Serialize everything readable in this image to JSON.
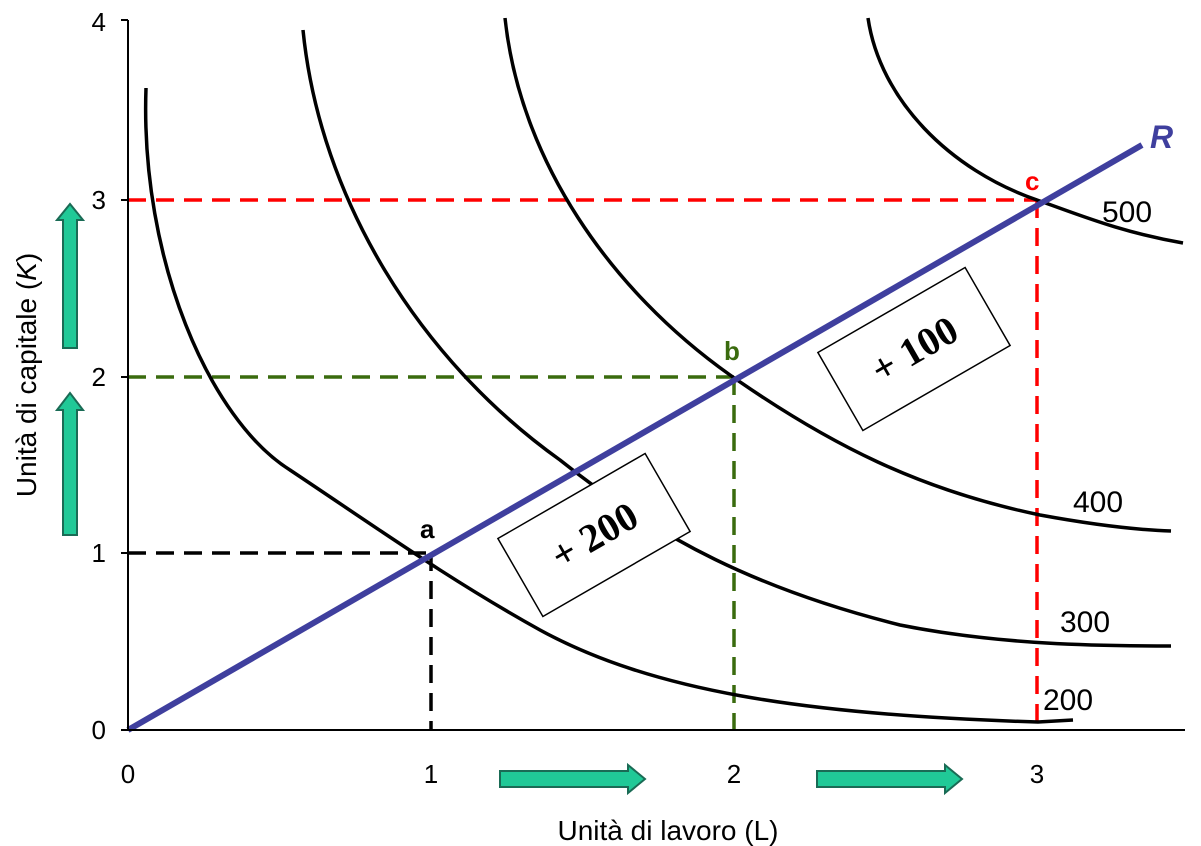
{
  "chart_data": {
    "type": "line",
    "title": "",
    "xlabel": "Unità di lavoro (L)",
    "ylabel": "Unità di capitale (K)",
    "ylabel_main": "Unità di capitale (",
    "ylabel_var": "K",
    "ylabel_close": ")",
    "xlim": [
      0,
      3.5
    ],
    "ylim": [
      0,
      4
    ],
    "xticks": [
      "0",
      "1",
      "2",
      "3"
    ],
    "yticks": [
      "0",
      "1",
      "2",
      "3",
      "4"
    ],
    "grid": false,
    "series": [
      {
        "name": "200",
        "color": "#000000",
        "x": [
          0.06,
          0.2,
          0.4,
          0.7,
          1.0,
          1.5,
          2.0,
          2.5,
          3.0,
          3.12
        ],
        "y": [
          3.62,
          2.9,
          2.0,
          1.35,
          0.98,
          0.55,
          0.25,
          0.1,
          0.04,
          0.05
        ]
      },
      {
        "name": "300",
        "color": "#000000",
        "x": [
          0.58,
          0.8,
          1.0,
          1.3,
          1.6,
          2.0,
          2.5,
          3.0,
          3.45
        ],
        "y": [
          3.95,
          3.3,
          2.75,
          2.05,
          1.5,
          0.98,
          0.68,
          0.53,
          0.48
        ]
      },
      {
        "name": "400",
        "color": "#000000",
        "x": [
          1.25,
          1.5,
          1.8,
          2.0,
          2.3,
          2.7,
          3.0,
          3.45
        ],
        "y": [
          4.05,
          3.2,
          2.48,
          2.0,
          1.65,
          1.33,
          1.22,
          1.12
        ]
      },
      {
        "name": "500",
        "color": "#000000",
        "x": [
          2.47,
          2.6,
          2.8,
          3.0,
          3.2,
          3.45
        ],
        "y": [
          4.05,
          3.6,
          3.2,
          2.98,
          2.83,
          2.75
        ]
      },
      {
        "name": "R",
        "color": "#3f3f9e",
        "x": [
          0,
          3.3
        ],
        "y": [
          0,
          3.3
        ]
      }
    ],
    "points": [
      {
        "name": "a",
        "x": 1,
        "y": 1,
        "color": "#000000"
      },
      {
        "name": "b",
        "x": 2,
        "y": 2,
        "color": "#3a6b0e"
      },
      {
        "name": "c",
        "x": 3,
        "y": 3,
        "color": "#ff0000"
      }
    ],
    "annotations": [
      {
        "text": "+ 200",
        "between": [
          "a",
          "b"
        ],
        "angle": -30
      },
      {
        "text": "+ 100",
        "between": [
          "b",
          "c"
        ],
        "angle": -30
      }
    ],
    "curve_labels": [
      "200",
      "300",
      "400",
      "500"
    ],
    "ray_label": "R",
    "colors": {
      "ray": "#3f3f9e",
      "guide_a": "#000000",
      "guide_b": "#3a6b0e",
      "guide_c": "#ff0000",
      "arrow_fill": "#20c997",
      "arrow_stroke": "#1a6b55"
    }
  }
}
